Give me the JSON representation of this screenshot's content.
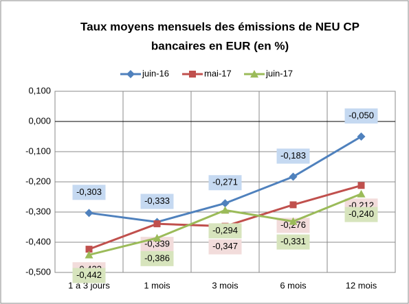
{
  "chart_data": {
    "type": "line",
    "title": [
      "Taux moyens mensuels des émissions de NEU CP",
      "bancaires en EUR (en %)"
    ],
    "categories": [
      "1 à 3 jours",
      "1 mois",
      "3 mois",
      "6 mois",
      "12 mois"
    ],
    "series": [
      {
        "name": "juin-16",
        "color": "#4f81bd",
        "marker": "diamond",
        "label_color": "#c5d9f1",
        "values": [
          -0.303,
          -0.333,
          -0.271,
          -0.183,
          -0.05
        ],
        "value_labels": [
          "-0,303",
          "-0,333",
          "-0,271",
          "-0,183",
          "-0,050"
        ]
      },
      {
        "name": "mai-17",
        "color": "#c0504d",
        "marker": "square",
        "label_color": "#f2dcdb",
        "values": [
          -0.423,
          -0.339,
          -0.347,
          -0.276,
          -0.212
        ],
        "value_labels": [
          "-0,423",
          "-0,339",
          "-0,347",
          "-0,276",
          "-0,212"
        ]
      },
      {
        "name": "juin-17",
        "color": "#9bbb59",
        "marker": "triangle",
        "label_color": "#d7e4bd",
        "values": [
          -0.442,
          -0.386,
          -0.294,
          -0.331,
          -0.24
        ],
        "value_labels": [
          "-0,442",
          "-0,386",
          "-0,294",
          "-0,331",
          "-0,240"
        ]
      }
    ],
    "ylim": [
      -0.5,
      0.1
    ],
    "yticks": [
      {
        "value": -0.5,
        "label": "-0,500"
      },
      {
        "value": -0.4,
        "label": "-0,400"
      },
      {
        "value": -0.3,
        "label": "-0,300"
      },
      {
        "value": -0.2,
        "label": "-0,200"
      },
      {
        "value": -0.1,
        "label": "-0,100"
      },
      {
        "value": 0,
        "label": "0,000"
      },
      {
        "value": 0.1,
        "label": "0,100"
      }
    ],
    "grid": true,
    "legend": "top"
  }
}
